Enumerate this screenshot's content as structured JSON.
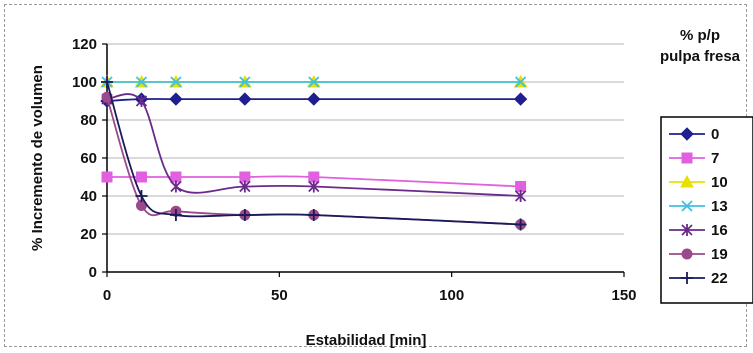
{
  "chart_data": {
    "type": "line",
    "xlabel": "Estabilidad [min]",
    "ylabel": "% Incremento de volumen",
    "xlim": [
      0,
      150
    ],
    "ylim": [
      0,
      120
    ],
    "xticks": [
      "0",
      "50",
      "100",
      "150"
    ],
    "yticks": [
      "0",
      "20",
      "40",
      "60",
      "80",
      "100",
      "120"
    ],
    "grid": "horizontal",
    "legend_title": [
      "% p/p",
      "pulpa fresa"
    ],
    "legend_position": "right",
    "series": [
      {
        "name": "0",
        "color": "#1f1f8f",
        "marker": "diamond",
        "x": [
          0,
          10,
          20,
          40,
          60,
          120
        ],
        "y": [
          90,
          91,
          91,
          91,
          91,
          91
        ]
      },
      {
        "name": "7",
        "color": "#e060e0",
        "marker": "square",
        "x": [
          0,
          10,
          20,
          40,
          60,
          120
        ],
        "y": [
          50,
          50,
          50,
          50,
          50,
          45
        ]
      },
      {
        "name": "10",
        "color": "#e8e000",
        "marker": "triangle",
        "x": [
          0,
          10,
          20,
          40,
          60,
          120
        ],
        "y": [
          100,
          100,
          100,
          100,
          100,
          100
        ]
      },
      {
        "name": "13",
        "color": "#40c0e0",
        "marker": "x",
        "x": [
          0,
          10,
          20,
          40,
          60,
          120
        ],
        "y": [
          100,
          100,
          100,
          100,
          100,
          100
        ]
      },
      {
        "name": "16",
        "color": "#6a2a8a",
        "marker": "star",
        "x": [
          0,
          10,
          20,
          40,
          60,
          120
        ],
        "y": [
          91,
          90,
          45,
          45,
          45,
          40
        ]
      },
      {
        "name": "19",
        "color": "#9a4a8a",
        "marker": "circle",
        "x": [
          0,
          10,
          20,
          40,
          60,
          120
        ],
        "y": [
          92,
          35,
          32,
          30,
          30,
          25
        ]
      },
      {
        "name": "22",
        "color": "#1a1a5a",
        "marker": "plus",
        "x": [
          0,
          10,
          20,
          40,
          60,
          120
        ],
        "y": [
          100,
          40,
          30,
          30,
          30,
          25
        ]
      }
    ]
  }
}
